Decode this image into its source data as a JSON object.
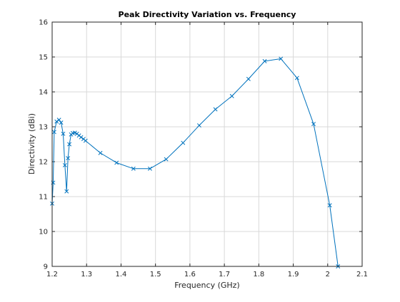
{
  "chart_data": {
    "type": "line",
    "title": "Peak Directivity Variation vs. Frequency",
    "xlabel": "Frequency (GHz)",
    "ylabel": "Directivity (dBi)",
    "xlim": [
      1.2,
      2.1
    ],
    "ylim": [
      9,
      16
    ],
    "xticks": [
      "1.2",
      "1.3",
      "1.4",
      "1.5",
      "1.6",
      "1.7",
      "1.8",
      "1.9",
      "2",
      "2.1"
    ],
    "yticks": [
      "9",
      "10",
      "11",
      "12",
      "13",
      "14",
      "15",
      "16"
    ],
    "grid": true,
    "marker": "x",
    "color": "#0072BD",
    "series": [
      {
        "x": [
          1.2,
          1.203,
          1.206,
          1.213,
          1.22,
          1.226,
          1.232,
          1.237,
          1.242,
          1.246,
          1.25,
          1.255,
          1.26,
          1.266,
          1.272,
          1.278,
          1.284,
          1.291,
          1.297,
          1.34,
          1.387,
          1.436,
          1.484,
          1.531,
          1.58,
          1.627,
          1.674,
          1.722,
          1.77,
          1.817,
          1.864,
          1.911,
          1.959,
          2.006,
          2.03
        ],
        "y": [
          10.8,
          11.4,
          12.85,
          13.15,
          13.2,
          13.12,
          12.8,
          11.9,
          11.15,
          12.1,
          12.5,
          12.78,
          12.82,
          12.83,
          12.8,
          12.75,
          12.7,
          12.65,
          12.6,
          12.25,
          11.97,
          11.8,
          11.8,
          12.07,
          12.54,
          13.04,
          13.5,
          13.88,
          14.37,
          14.88,
          14.95,
          14.4,
          13.08,
          10.75,
          9.0
        ]
      }
    ]
  }
}
